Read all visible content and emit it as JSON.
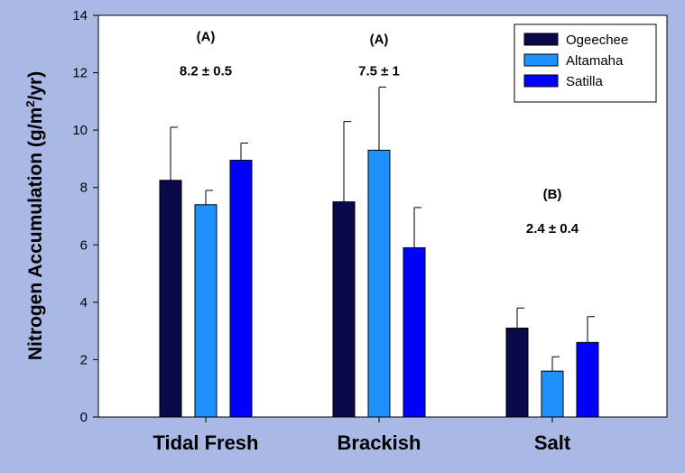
{
  "chart_data": {
    "type": "bar",
    "title": "",
    "xlabel": "",
    "ylabel_parts": {
      "main": "Nitrogen Accumulation (g/m",
      "superscript": "2",
      "tail": "/yr)"
    },
    "ylim": [
      0,
      14
    ],
    "yticks": [
      0,
      2,
      4,
      6,
      8,
      10,
      12,
      14
    ],
    "grid": false,
    "legend_position": "top-right",
    "categories": [
      "Tidal Fresh",
      "Brackish",
      "Salt"
    ],
    "series": [
      {
        "name": "Ogeechee",
        "color": "#0a0a4a",
        "values": [
          8.25,
          7.5,
          3.1
        ],
        "errors": [
          1.85,
          2.8,
          0.7
        ]
      },
      {
        "name": "Altamaha",
        "color": "#1e90ff",
        "values": [
          7.4,
          9.3,
          1.6
        ],
        "errors": [
          0.5,
          2.2,
          0.5
        ]
      },
      {
        "name": "Satilla",
        "color": "#0000ff",
        "values": [
          8.95,
          5.9,
          2.6
        ],
        "errors": [
          0.6,
          1.4,
          0.9
        ]
      }
    ],
    "annotations": [
      {
        "group": "(A)",
        "stat": "8.2 ± 0.5",
        "category": 0,
        "group_y": 13.3,
        "stat_y": 12.1
      },
      {
        "group": "(A)",
        "stat": "7.5 ± 1",
        "category": 1,
        "group_y": 13.2,
        "stat_y": 12.1
      },
      {
        "group": "(B)",
        "stat": "2.4 ± 0.4",
        "category": 2,
        "group_y": 7.8,
        "stat_y": 6.6
      }
    ]
  }
}
